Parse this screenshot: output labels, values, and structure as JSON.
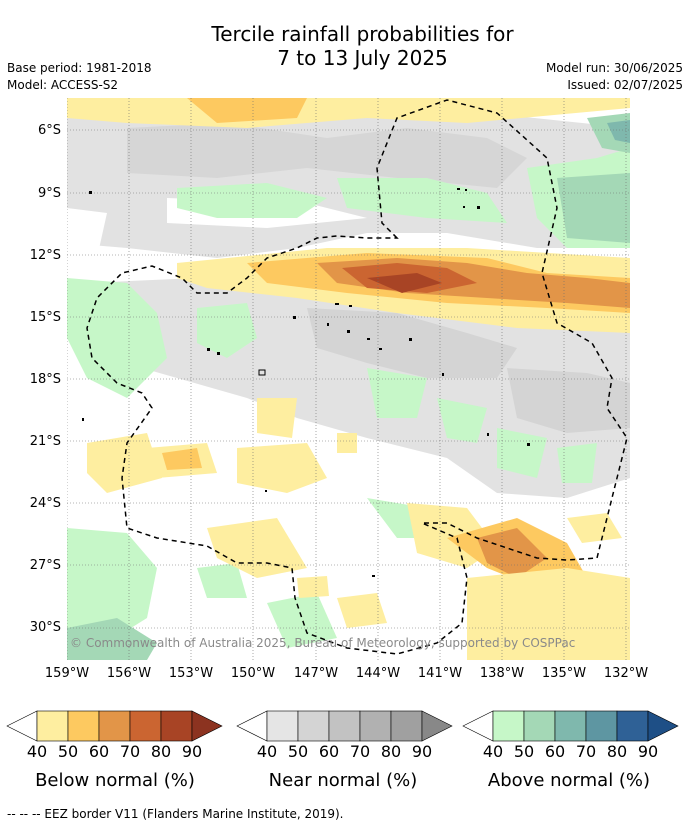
{
  "title_line1": "Tercile rainfall probabilities for",
  "title_line2": "7 to 13 July 2025",
  "base_period": "Base period: 1981-2018",
  "model": "Model: ACCESS-S2",
  "model_run": "Model run: 30/06/2025",
  "issued": "Issued: 02/07/2025",
  "lat_labels": [
    "6°S",
    "9°S",
    "12°S",
    "15°S",
    "18°S",
    "21°S",
    "24°S",
    "27°S",
    "30°S"
  ],
  "lon_labels": [
    "159°W",
    "156°W",
    "153°W",
    "150°W",
    "147°W",
    "144°W",
    "141°W",
    "138°W",
    "135°W",
    "132°W"
  ],
  "copyright": "© Commonwealth of Australia 2025, Bureau of Meteorology, supported by COSPPac",
  "legends": [
    {
      "title": "Below normal (%)",
      "ticks": [
        "40",
        "50",
        "60",
        "70",
        "80",
        "90"
      ],
      "colors": [
        "#ffffff",
        "#feeea0",
        "#fdc960",
        "#e29548",
        "#cb6531",
        "#a84425",
        "#8c3320"
      ]
    },
    {
      "title": "Near normal (%)",
      "ticks": [
        "40",
        "50",
        "60",
        "70",
        "80",
        "90"
      ],
      "colors": [
        "#ffffff",
        "#e5e5e5",
        "#d4d4d4",
        "#c2c2c2",
        "#b1b1b1",
        "#a0a0a0",
        "#888888"
      ]
    },
    {
      "title": "Above normal (%)",
      "ticks": [
        "40",
        "50",
        "60",
        "70",
        "80",
        "90"
      ],
      "colors": [
        "#ffffff",
        "#c6f7c8",
        "#a4d8b6",
        "#7fb8ad",
        "#5e96a2",
        "#2f6196",
        "#1e4f86"
      ]
    }
  ],
  "footer": "--  --  -- EEZ border V11 (Flanders Marine Institute, 2019)."
}
